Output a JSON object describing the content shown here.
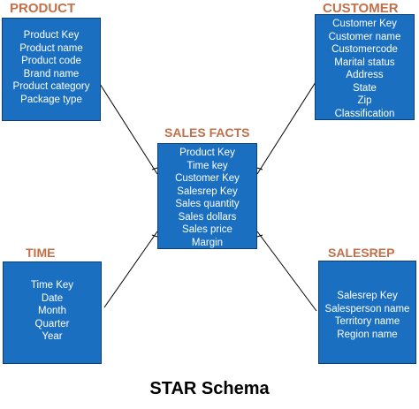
{
  "colors": {
    "box_fill": "#1b6fc0",
    "box_border": "#0d3f75",
    "title_color": "#c0704a",
    "line_color": "#000000"
  },
  "product": {
    "title": "PRODUCT",
    "fields": [
      "Product Key",
      "Product name",
      "Product code",
      "Brand name",
      "Product category",
      "Package type"
    ]
  },
  "customer": {
    "title": "CUSTOMER",
    "fields": [
      "Customer Key",
      "Customer name",
      "Customercode",
      "Marital status",
      "Address",
      "State",
      "Zip",
      "Classification"
    ]
  },
  "sales_facts": {
    "title": "SALES FACTS",
    "fields": [
      "Product Key",
      "Time key",
      "Customer Key",
      "Salesrep Key",
      "Sales quantity",
      "Sales dollars",
      "Sales price",
      "Margin"
    ]
  },
  "time": {
    "title": "TIME",
    "fields": [
      "Time Key",
      "Date",
      "Month",
      "Quarter",
      "Year"
    ]
  },
  "salesrep": {
    "title": "SALESREP",
    "fields": [
      "Salesrep Key",
      "Salesperson name",
      "Territory name",
      "Region name"
    ]
  },
  "caption": "STAR Schema"
}
